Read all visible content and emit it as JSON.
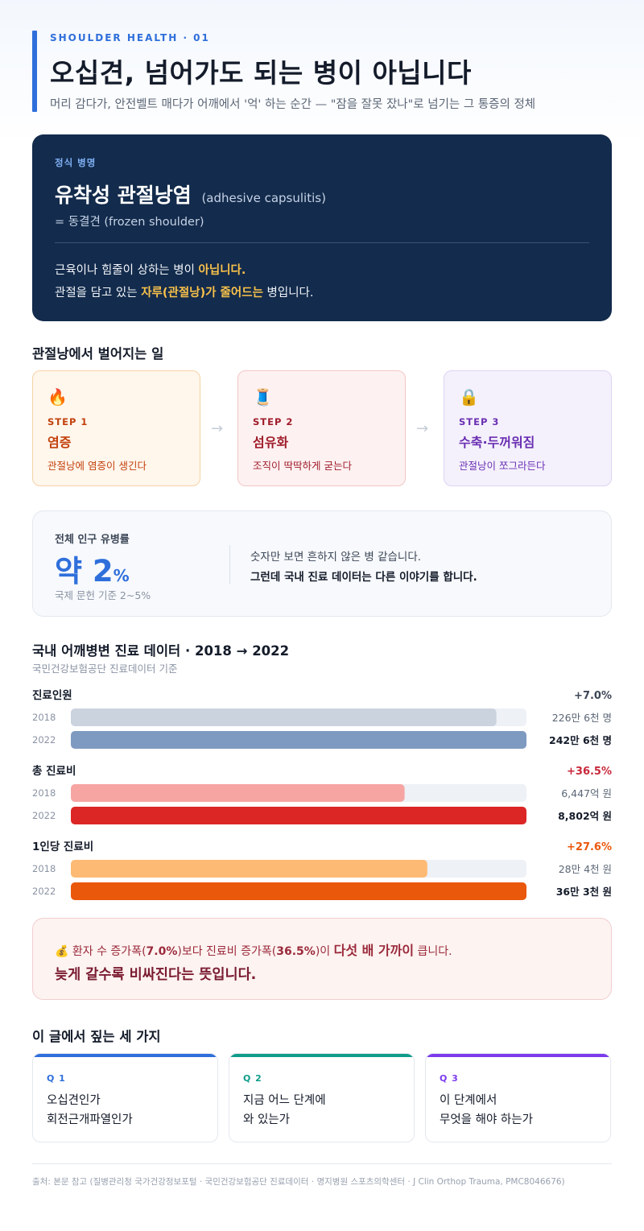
{
  "header": {
    "kicker": "SHOULDER HEALTH · 01",
    "title": "오십견, 넘어가도 되는 병이 아닙니다",
    "subtitle": "머리 감다가, 안전벨트 매다가 어깨에서 '억' 하는 순간 — \"잠을 잘못 잤나\"로 넘기는 그 통증의 정체"
  },
  "diagnosis": {
    "label": "정식 병명",
    "name": "유착성 관절낭염",
    "name_en": "(adhesive capsulitis)",
    "alias": "= 동결견 (frozen shoulder)",
    "line1_a": "근육이나 힘줄이 상하는 병이 ",
    "line1_hl": "아닙니다.",
    "line2_a": "관절을 담고 있는 ",
    "line2_hl": "자루(관절낭)가 줄어드는",
    "line2_b": " 병입니다."
  },
  "process": {
    "title": "관절낭에서 벌어지는 일",
    "arrow": "→",
    "steps": [
      {
        "icon": "🔥",
        "icon_name": "fire-icon",
        "num": "STEP 1",
        "name": "염증",
        "desc": "관절낭에 염증이 생긴다",
        "color": "#c2410c",
        "bg": "#fff6ec",
        "border": "#f5d3a6"
      },
      {
        "icon": "🧵",
        "icon_name": "thread-spool-icon",
        "num": "STEP 2",
        "name": "섬유화",
        "desc": "조직이 딱딱하게 굳는다",
        "color": "#9f1d2b",
        "bg": "#fef1f1",
        "border": "#f2c7c7"
      },
      {
        "icon": "🔒",
        "icon_name": "lock-icon",
        "num": "STEP 3",
        "name": "수축·두꺼워짐",
        "desc": "관절낭이 쪼그라든다",
        "color": "#6b2fb3",
        "bg": "#f4f1fc",
        "border": "#ddd3f3"
      }
    ]
  },
  "prevalence": {
    "label": "전체 인구 유병률",
    "value": "약 2",
    "unit": "%",
    "note": "국제 문헌 기준 2~5%",
    "text1": "숫자만 보면 흔하지 않은 병 같습니다.",
    "text2": "그런데 국내 진료 데이터는 다른 이야기를 합니다."
  },
  "chart_data": {
    "type": "bar",
    "title": "국내 어깨병변 진료 데이터 · 2018 → 2022",
    "subtitle": "국민건강보험공단 진료데이터 기준",
    "categories": [
      "2018",
      "2022"
    ],
    "groups": [
      {
        "name": "진료인원",
        "change": "+7.0%",
        "change_color": "#3d4757",
        "values": [
          226.6,
          242.6
        ],
        "unit": "만 명",
        "labels": [
          "226만 6천 명",
          "242만 6천 명"
        ],
        "colors": [
          "#cbd3df",
          "#7f9ac0"
        ]
      },
      {
        "name": "총 진료비",
        "change": "+36.5%",
        "change_color": "#c8283a",
        "values": [
          6447,
          8802
        ],
        "unit": "억 원",
        "labels": [
          "6,447억 원",
          "8,802억 원"
        ],
        "colors": [
          "#f6a5a3",
          "#dc2626"
        ]
      },
      {
        "name": "1인당 진료비",
        "change": "+27.6%",
        "change_color": "#ea580c",
        "values": [
          28.4,
          36.3
        ],
        "unit": "만 원",
        "labels": [
          "28만 4천 원",
          "36만 3천 원"
        ],
        "colors": [
          "#fdba74",
          "#ea580c"
        ]
      }
    ]
  },
  "alert": {
    "icon": "💰",
    "icon_name": "money-bag-icon",
    "l1_a": "환자 수 증가폭(",
    "l1_v1": "7.0%",
    "l1_b": ")보다 진료비 증가폭(",
    "l1_v2": "36.5%",
    "l1_c": ")이 ",
    "l1_big": "다섯 배 가까이",
    "l1_d": " 큽니다.",
    "line2": "늦게 갈수록 비싸진다는 뜻입니다."
  },
  "questions": {
    "title": "이 글에서 짚는 세 가지",
    "items": [
      {
        "label": "Q 1",
        "line1": "오십견인가",
        "line2": "회전근개파열인가",
        "color": "#2f6fdb"
      },
      {
        "label": "Q 2",
        "line1": "지금 어느 단계에",
        "line2": "와 있는가",
        "color": "#0f9d8a"
      },
      {
        "label": "Q 3",
        "line1": "이 단계에서",
        "line2": "무엇을 해야 하는가",
        "color": "#7c3aed"
      }
    ]
  },
  "footer": "출처: 본문 참고 (질병관리청 국가건강정보포털 · 국민건강보험공단 진료데이터 · 명지병원 스포츠의학센터 · J Clin Orthop Trauma, PMC8046676)"
}
